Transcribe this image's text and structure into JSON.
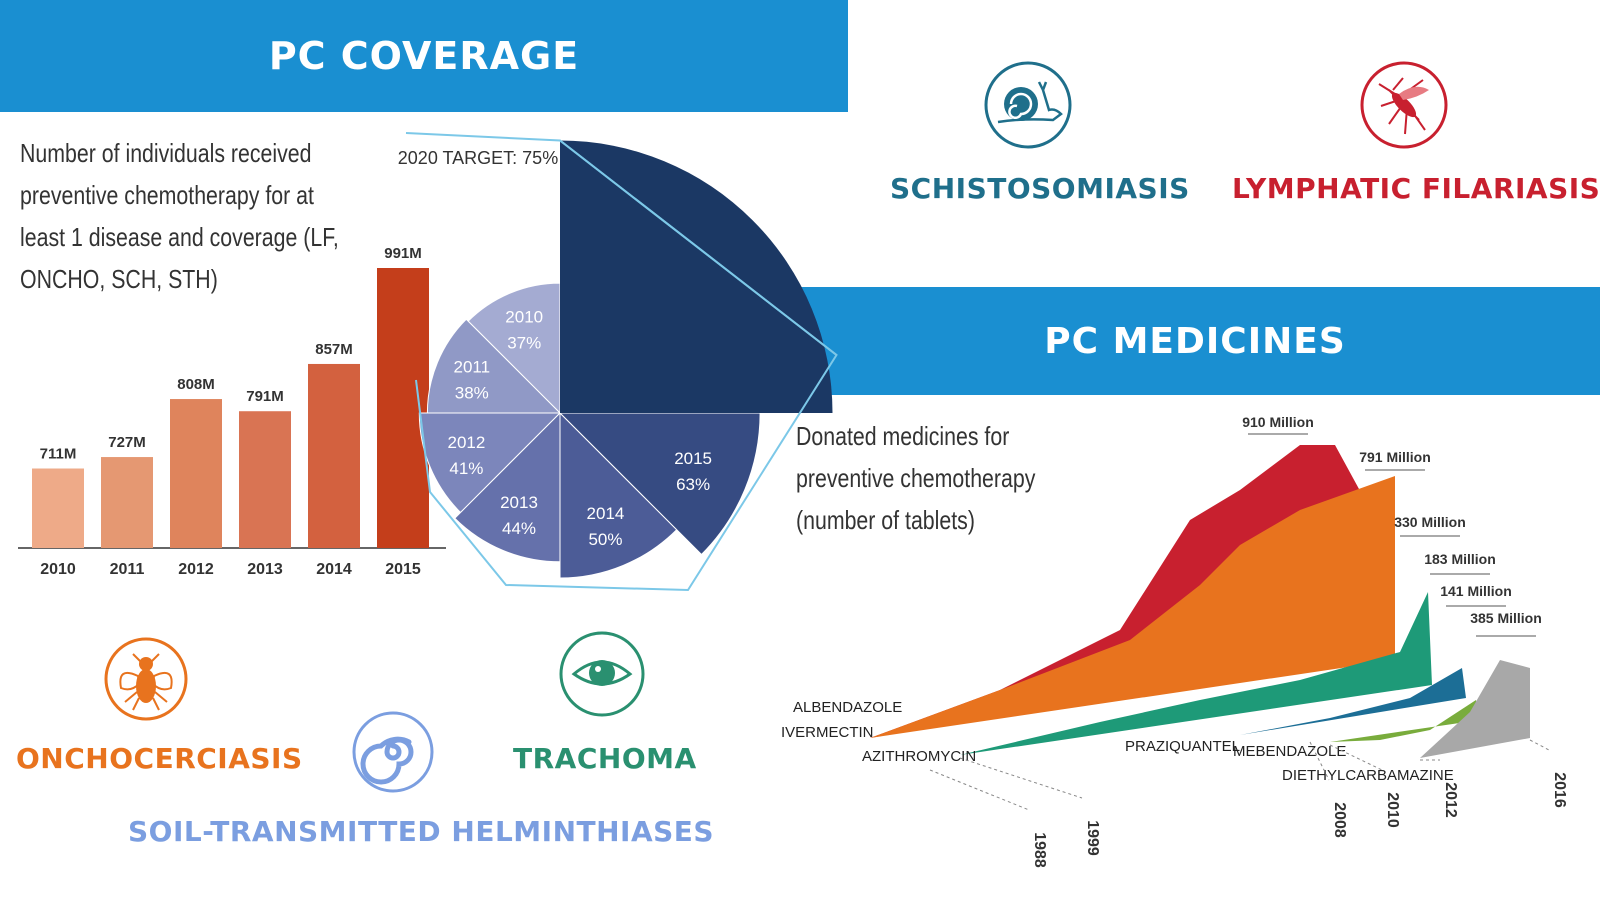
{
  "headers": {
    "coverage": "PC COVERAGE",
    "medicines": "PC MEDICINES"
  },
  "coverage_description": "Number of individuals received preventive chemotherapy for at least 1 disease and coverage (LF, ONCHO, SCH, STH)",
  "medicines_description": "Donated medicines for preventive chemotherapy (number of tablets)",
  "diseases": {
    "schistosomiasis": "SCHISTOSOMIASIS",
    "lymphatic_filariasis": "LYMPHATIC FILARIASIS",
    "onchocerciasis": "ONCHOCERCIASIS",
    "trachoma": "TRACHOMA",
    "sth": "SOIL-TRANSMITTED HELMINTHIASES"
  },
  "colors": {
    "banner": "#1a8fd1",
    "schistosomiasis": "#1f6f8b",
    "lymphatic_filariasis": "#c8202f",
    "onchocerciasis": "#e8731e",
    "trachoma": "#2a9070",
    "sth": "#7b9ee0"
  },
  "icons": {
    "schistosomiasis": "snail-icon",
    "lymphatic_filariasis": "mosquito-icon",
    "onchocerciasis": "blackfly-icon",
    "trachoma": "eye-icon",
    "sth": "worm-spiral-icon"
  },
  "chart_data": [
    {
      "type": "bar",
      "categories": [
        "2010",
        "2011",
        "2012",
        "2013",
        "2014",
        "2015"
      ],
      "values": [
        711,
        727,
        808,
        791,
        857,
        991
      ],
      "value_labels": [
        "711M",
        "727M",
        "808M",
        "791M",
        "857M",
        "991M"
      ],
      "colors": [
        "#eeaa88",
        "#e59872",
        "#df845c",
        "#d97453",
        "#d3613f",
        "#c43e1b"
      ]
    },
    {
      "type": "pie",
      "title": "2020 TARGET: 75%",
      "slices": [
        {
          "year": "2010",
          "value": 37,
          "label": "37%",
          "color": "#a4abd2"
        },
        {
          "year": "2011",
          "value": 38,
          "label": "38%",
          "color": "#9099c6"
        },
        {
          "year": "2012",
          "value": 41,
          "label": "41%",
          "color": "#7c86bb"
        },
        {
          "year": "2013",
          "value": 44,
          "label": "44%",
          "color": "#6571ab"
        },
        {
          "year": "2014",
          "value": 50,
          "label": "50%",
          "color": "#4c5c97"
        },
        {
          "year": "2015",
          "value": 63,
          "label": "63%",
          "color": "#364b82"
        }
      ],
      "target": {
        "label": "2020 TARGET: 75%",
        "value": 75,
        "color": "#1b3864"
      }
    },
    {
      "type": "area",
      "series": [
        {
          "name": "ALBENDAZOLE",
          "start_year": "1988",
          "peak_label": "910 Million",
          "color": "#c8202f"
        },
        {
          "name": "IVERMECTIN",
          "start_year": "1988",
          "peak_label": "791 Million",
          "color": "#e8731e"
        },
        {
          "name": "AZITHROMYCIN",
          "start_year": "1999",
          "peak_label": "330 Million",
          "color": "#1e9a78"
        },
        {
          "name": "PRAZIQUANTEL",
          "start_year": "2008",
          "peak_label": "183 Million",
          "color": "#1c6e96"
        },
        {
          "name": "MEBENDAZOLE",
          "start_year": "2010",
          "peak_label": "141 Million",
          "color": "#79ac3c"
        },
        {
          "name": "DIETHYLCARBAMAZINE",
          "start_year": "2012",
          "peak_label": "385 Million",
          "color": "#a8a8a8"
        }
      ],
      "x_ticks": [
        "1988",
        "1999",
        "2008",
        "2010",
        "2012",
        "2016"
      ]
    }
  ]
}
